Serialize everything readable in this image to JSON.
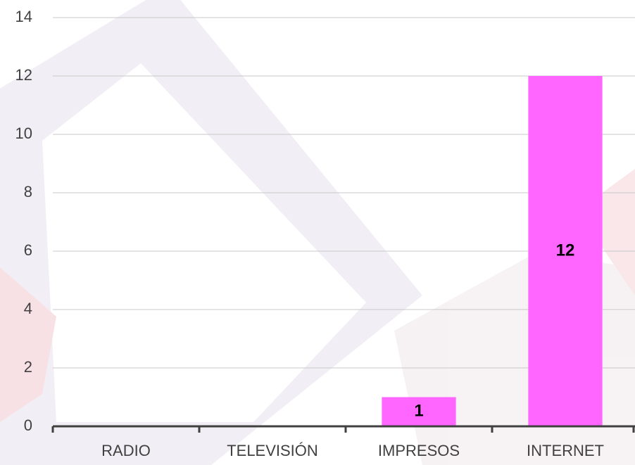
{
  "chart_data": {
    "type": "bar",
    "categories": [
      "RADIO",
      "TELEVISIÓN",
      "IMPRESOS",
      "INTERNET"
    ],
    "values": [
      0,
      0,
      1,
      12
    ],
    "value_labels": [
      null,
      null,
      "1",
      "12"
    ],
    "color": "#ff66ff",
    "ylim": [
      0,
      14
    ],
    "yticks": [
      0,
      2,
      4,
      6,
      8,
      10,
      12,
      14
    ],
    "grid": true
  }
}
